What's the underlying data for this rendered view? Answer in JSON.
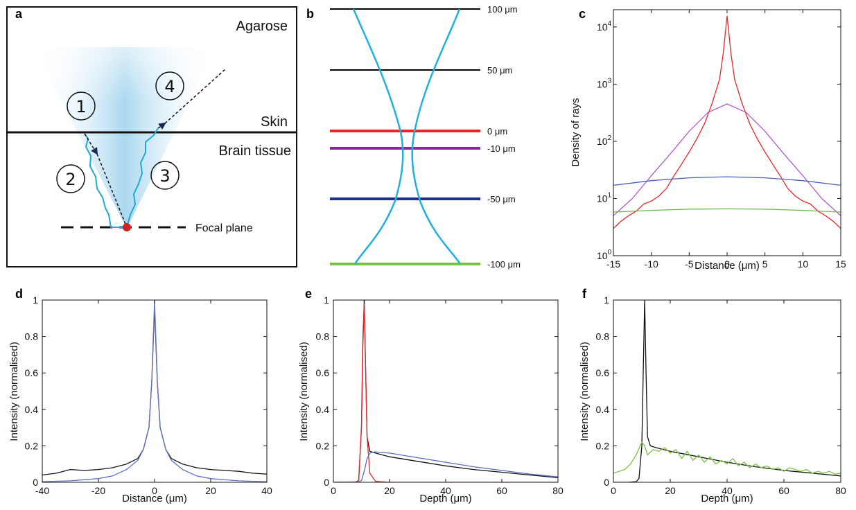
{
  "figure": {
    "panel_labels": [
      "a",
      "b",
      "c",
      "d",
      "e",
      "f"
    ]
  },
  "panel_a": {
    "labels": {
      "agarose": "Agarose",
      "skin": "Skin",
      "brain_tissue": "Brain tissue",
      "focal_plane": "Focal plane"
    },
    "path_numbers": [
      "1",
      "2",
      "3",
      "4"
    ],
    "colors": {
      "cone": "#9fd3ee",
      "path": "#1fa8d8",
      "focal_point": "#d42020"
    }
  },
  "panel_b": {
    "planes": [
      {
        "label": "100 μm",
        "color": "#000000"
      },
      {
        "label": "50 μm",
        "color": "#000000"
      },
      {
        "label": "0 μm",
        "color": "#e8262a"
      },
      {
        "label": "-10 μm",
        "color": "#8a2a9e"
      },
      {
        "label": "-50 μm",
        "color": "#1e2f8c"
      },
      {
        "label": "-100 μm",
        "color": "#7cc242"
      }
    ],
    "beam_color": "#1fb0e0"
  },
  "chart_data": [
    {
      "panel": "c",
      "type": "line",
      "xlabel": "Distance (μm)",
      "ylabel": "Density of rays",
      "xlim": [
        -15,
        15
      ],
      "ylim": [
        1,
        20000
      ],
      "yscale": "log",
      "xticks": [
        -15,
        -10,
        -5,
        0,
        5,
        10,
        15
      ],
      "yticks": [
        {
          "value": 1,
          "base": "10",
          "exp": "0"
        },
        {
          "value": 10,
          "base": "10",
          "exp": "1"
        },
        {
          "value": 100,
          "base": "10",
          "exp": "2"
        },
        {
          "value": 1000,
          "base": "10",
          "exp": "3"
        },
        {
          "value": 10000,
          "base": "10",
          "exp": "4"
        }
      ],
      "series": [
        {
          "color": "#e8262a",
          "x": [
            -15,
            -14,
            -13,
            -12,
            -11,
            -10,
            -9,
            -8,
            -7,
            -6,
            -5,
            -4,
            -3,
            -2,
            -1,
            -0.5,
            0,
            0.5,
            1,
            2,
            3,
            4,
            5,
            6,
            7,
            8,
            9,
            10,
            11,
            12,
            13,
            14,
            15
          ],
          "values": [
            3,
            4,
            5,
            6,
            8,
            9,
            11,
            15,
            25,
            40,
            65,
            110,
            200,
            450,
            1200,
            3500,
            15500,
            3500,
            1200,
            450,
            200,
            110,
            65,
            40,
            25,
            15,
            11,
            9,
            8,
            6,
            5,
            4,
            3
          ]
        },
        {
          "color": "#b05bc6",
          "x": [
            -15,
            -12.5,
            -10,
            -7.5,
            -5,
            -2.5,
            0,
            2.5,
            5,
            7.5,
            10,
            12.5,
            15
          ],
          "values": [
            5,
            10,
            25,
            60,
            150,
            320,
            450,
            320,
            150,
            60,
            25,
            10,
            5
          ]
        },
        {
          "color": "#4a5fb5",
          "x": [
            -15,
            -10,
            -5,
            0,
            5,
            10,
            15
          ],
          "values": [
            17,
            20.5,
            23,
            24,
            23,
            20.5,
            17
          ]
        },
        {
          "color": "#6ab84a",
          "x": [
            -15,
            -10,
            -5,
            0,
            5,
            10,
            15
          ],
          "values": [
            5.8,
            6.2,
            6.5,
            6.6,
            6.5,
            6.2,
            5.8
          ]
        }
      ]
    },
    {
      "panel": "d",
      "type": "line",
      "xlabel": "Distance (μm)",
      "ylabel": "Intensity (normalised)",
      "xlim": [
        -40,
        40
      ],
      "ylim": [
        0,
        1
      ],
      "xticks": [
        -40,
        -20,
        0,
        20,
        40
      ],
      "yticks": [
        0,
        0.2,
        0.4,
        0.6,
        0.8,
        1
      ],
      "series": [
        {
          "color": "#111111",
          "x": [
            -40,
            -35,
            -30,
            -25,
            -20,
            -15,
            -10,
            -6,
            -4,
            -2,
            -1,
            0,
            1,
            2,
            4,
            6,
            10,
            15,
            20,
            25,
            30,
            35,
            40
          ],
          "values": [
            0.04,
            0.05,
            0.07,
            0.065,
            0.07,
            0.08,
            0.1,
            0.13,
            0.18,
            0.3,
            0.55,
            0.96,
            0.55,
            0.3,
            0.18,
            0.13,
            0.1,
            0.08,
            0.07,
            0.065,
            0.06,
            0.05,
            0.045
          ]
        },
        {
          "color": "#6273c2",
          "x": [
            -40,
            -30,
            -20,
            -15,
            -10,
            -6,
            -4,
            -2,
            -1,
            0,
            1,
            2,
            4,
            6,
            10,
            15,
            20,
            30,
            40
          ],
          "values": [
            0.003,
            0.008,
            0.02,
            0.035,
            0.07,
            0.12,
            0.18,
            0.3,
            0.55,
            1.0,
            0.55,
            0.3,
            0.18,
            0.12,
            0.07,
            0.035,
            0.02,
            0.008,
            0.003
          ]
        }
      ]
    },
    {
      "panel": "e",
      "type": "line",
      "xlabel": "Depth (μm)",
      "ylabel": "Intensity (normalised)",
      "xlim": [
        0,
        80
      ],
      "ylim": [
        0,
        1
      ],
      "xticks": [
        0,
        20,
        40,
        60,
        80
      ],
      "yticks": [
        0,
        0.2,
        0.4,
        0.6,
        0.8,
        1
      ],
      "series": [
        {
          "color": "#111111",
          "x": [
            0,
            5,
            8,
            9,
            10,
            10.5,
            11,
            11.5,
            12,
            13,
            15,
            20,
            30,
            40,
            50,
            60,
            70,
            80
          ],
          "values": [
            0,
            0,
            0.002,
            0.01,
            0.3,
            0.75,
            1.0,
            0.6,
            0.25,
            0.17,
            0.16,
            0.14,
            0.115,
            0.09,
            0.07,
            0.055,
            0.04,
            0.025
          ]
        },
        {
          "color": "#e8262a",
          "x": [
            0,
            8,
            9,
            10,
            10.5,
            11,
            11.5,
            12,
            13,
            15,
            20,
            40,
            60,
            80
          ],
          "values": [
            0,
            0.002,
            0.01,
            0.3,
            0.8,
            0.98,
            0.6,
            0.25,
            0.05,
            0.005,
            0,
            0,
            0,
            0
          ]
        },
        {
          "color": "#5b6bbf",
          "x": [
            0,
            9,
            10,
            11,
            12,
            13,
            14,
            15,
            20,
            30,
            40,
            50,
            60,
            70,
            80
          ],
          "values": [
            0,
            0.002,
            0.01,
            0.06,
            0.13,
            0.16,
            0.165,
            0.167,
            0.16,
            0.135,
            0.11,
            0.085,
            0.065,
            0.045,
            0.03
          ]
        }
      ]
    },
    {
      "panel": "f",
      "type": "line",
      "xlabel": "Depth (μm)",
      "ylabel": "Intensity (normalised)",
      "xlim": [
        0,
        80
      ],
      "ylim": [
        0,
        1
      ],
      "xticks": [
        0,
        20,
        40,
        60,
        80
      ],
      "yticks": [
        0,
        0.2,
        0.4,
        0.6,
        0.8,
        1
      ],
      "series": [
        {
          "color": "#111111",
          "x": [
            0,
            5,
            8,
            9,
            10,
            10.5,
            11,
            11.5,
            12,
            13,
            15,
            20,
            30,
            40,
            50,
            60,
            70,
            80
          ],
          "values": [
            0,
            0,
            0.003,
            0.02,
            0.2,
            0.6,
            1.0,
            0.6,
            0.25,
            0.2,
            0.19,
            0.17,
            0.14,
            0.11,
            0.085,
            0.065,
            0.05,
            0.035
          ]
        },
        {
          "color": "#7cc242",
          "x": [
            0,
            2,
            4,
            6,
            8,
            10,
            11,
            12,
            14,
            16,
            18,
            20,
            22,
            24,
            26,
            28,
            30,
            32,
            34,
            36,
            38,
            40,
            42,
            44,
            46,
            48,
            50,
            52,
            54,
            56,
            58,
            60,
            62,
            64,
            66,
            68,
            70,
            72,
            74,
            76,
            78,
            80
          ],
          "values": [
            0.05,
            0.06,
            0.07,
            0.1,
            0.15,
            0.22,
            0.2,
            0.15,
            0.18,
            0.17,
            0.19,
            0.16,
            0.18,
            0.13,
            0.17,
            0.12,
            0.15,
            0.11,
            0.14,
            0.1,
            0.12,
            0.1,
            0.13,
            0.09,
            0.11,
            0.08,
            0.1,
            0.08,
            0.09,
            0.07,
            0.08,
            0.06,
            0.08,
            0.07,
            0.06,
            0.07,
            0.05,
            0.06,
            0.05,
            0.06,
            0.045,
            0.05
          ]
        }
      ]
    }
  ]
}
